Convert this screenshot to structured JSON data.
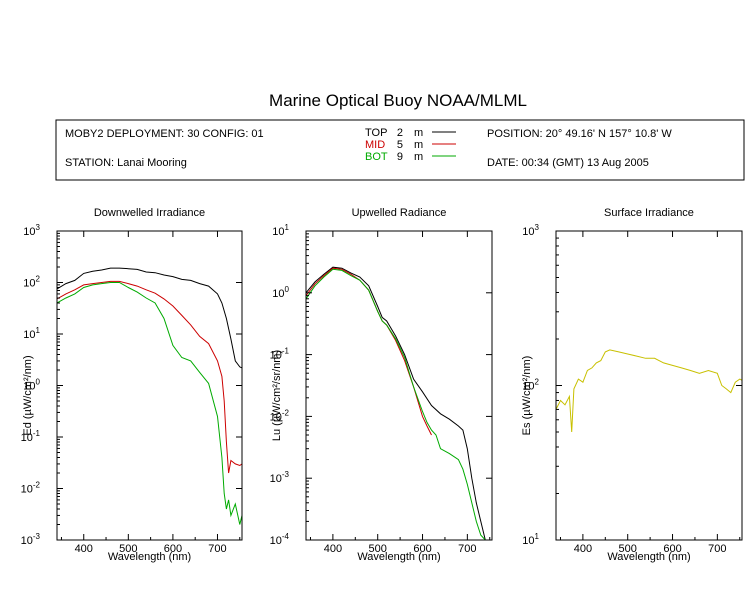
{
  "page": {
    "title": "Marine Optical Buoy NOAA/MLML"
  },
  "info_box": {
    "deployment": "MOBY2 DEPLOYMENT: 30 CONFIG: 01",
    "station": "STATION: Lanai Mooring",
    "position": "POSITION: 20° 49.16' N   157° 10.8' W",
    "date": "DATE: 00:34 (GMT) 13 Aug 2005",
    "depth_legend": [
      {
        "name": "TOP",
        "depth": "2",
        "unit": "m",
        "color": "#000000"
      },
      {
        "name": "MID",
        "depth": "5",
        "unit": "m",
        "color": "#cc0000"
      },
      {
        "name": "BOT",
        "depth": "9",
        "unit": "m",
        "color": "#00aa00"
      }
    ]
  },
  "chart_data": [
    {
      "type": "line",
      "title": "Downwelled Irradiance",
      "xlabel": "Wavelength (nm)",
      "ylabel": "Ed  (µW/cm²/nm)",
      "xlim": [
        340,
        755
      ],
      "ylim": [
        0.001,
        1000
      ],
      "yscale": "log",
      "xticks": [
        400,
        500,
        600,
        700
      ],
      "yticks": [
        {
          "value": 0.001,
          "base": "10",
          "exp": "-3"
        },
        {
          "value": 0.01,
          "base": "10",
          "exp": "-2"
        },
        {
          "value": 0.1,
          "base": "10",
          "exp": "-1"
        },
        {
          "value": 1,
          "base": "10",
          "exp": "0"
        },
        {
          "value": 10,
          "base": "10",
          "exp": "1"
        },
        {
          "value": 100,
          "base": "10",
          "exp": "2"
        },
        {
          "value": 1000,
          "base": "10",
          "exp": "3"
        }
      ],
      "series": [
        {
          "name": "TOP",
          "color": "#000000",
          "x": [
            340,
            360,
            380,
            400,
            420,
            440,
            460,
            480,
            500,
            520,
            540,
            560,
            580,
            600,
            620,
            640,
            660,
            680,
            700,
            710,
            720,
            730,
            740,
            750,
            755
          ],
          "y": [
            75,
            95,
            110,
            150,
            165,
            175,
            190,
            190,
            185,
            180,
            160,
            155,
            140,
            130,
            115,
            110,
            95,
            85,
            60,
            40,
            20,
            8,
            3,
            2.3,
            2.2
          ]
        },
        {
          "name": "MID",
          "color": "#cc0000",
          "x": [
            340,
            360,
            380,
            400,
            420,
            440,
            460,
            480,
            500,
            520,
            540,
            560,
            580,
            600,
            620,
            640,
            660,
            680,
            700,
            710,
            715,
            720,
            725,
            730,
            740,
            750,
            755
          ],
          "y": [
            48,
            60,
            72,
            90,
            95,
            100,
            105,
            105,
            95,
            85,
            72,
            62,
            48,
            35,
            23,
            15,
            9,
            6.5,
            3,
            1.5,
            0.5,
            0.08,
            0.02,
            0.035,
            0.03,
            0.028,
            0.03
          ]
        },
        {
          "name": "BOT",
          "color": "#00aa00",
          "x": [
            340,
            360,
            380,
            400,
            420,
            440,
            460,
            480,
            500,
            520,
            540,
            560,
            580,
            600,
            620,
            640,
            660,
            680,
            700,
            710,
            715,
            720,
            725,
            730,
            740,
            750,
            755
          ],
          "y": [
            40,
            50,
            60,
            80,
            90,
            95,
            100,
            100,
            80,
            65,
            50,
            40,
            20,
            6,
            3.5,
            3,
            1.8,
            1.1,
            0.25,
            0.04,
            0.008,
            0.004,
            0.006,
            0.003,
            0.005,
            0.002,
            0.003
          ]
        }
      ]
    },
    {
      "type": "line",
      "title": "Upwelled Radiance",
      "xlabel": "Wavelength (nm)",
      "ylabel": "Lu  (µW/cm²/sr/nm)",
      "xlim": [
        340,
        755
      ],
      "ylim": [
        0.0001,
        10
      ],
      "yscale": "log",
      "xticks": [
        400,
        500,
        600,
        700
      ],
      "yticks": [
        {
          "value": 0.0001,
          "base": "10",
          "exp": "-4"
        },
        {
          "value": 0.001,
          "base": "10",
          "exp": "-3"
        },
        {
          "value": 0.01,
          "base": "10",
          "exp": "-2"
        },
        {
          "value": 0.1,
          "base": "10",
          "exp": "-1"
        },
        {
          "value": 1,
          "base": "10",
          "exp": "0"
        },
        {
          "value": 10,
          "base": "10",
          "exp": "1"
        }
      ],
      "series": [
        {
          "name": "TOP",
          "color": "#000000",
          "x": [
            340,
            360,
            380,
            400,
            420,
            440,
            460,
            480,
            500,
            510,
            520,
            540,
            560,
            580,
            600,
            620,
            640,
            660,
            680,
            690,
            700,
            710,
            720,
            730,
            740
          ],
          "y": [
            1.0,
            1.5,
            2.0,
            2.6,
            2.5,
            2.1,
            1.8,
            1.3,
            0.6,
            0.4,
            0.35,
            0.2,
            0.1,
            0.04,
            0.025,
            0.015,
            0.011,
            0.009,
            0.007,
            0.006,
            0.003,
            0.001,
            0.0004,
            0.0002,
            0.0001
          ]
        },
        {
          "name": "MID",
          "color": "#cc0000",
          "x": [
            340,
            360,
            380,
            400,
            420,
            440,
            460,
            480,
            500,
            510,
            520,
            540,
            560,
            580,
            600,
            610,
            620
          ],
          "y": [
            0.9,
            1.4,
            1.9,
            2.5,
            2.4,
            2.0,
            1.6,
            1.1,
            0.5,
            0.35,
            0.3,
            0.17,
            0.08,
            0.03,
            0.01,
            0.007,
            0.005
          ]
        },
        {
          "name": "BOT",
          "color": "#00aa00",
          "x": [
            340,
            360,
            380,
            400,
            420,
            440,
            460,
            480,
            500,
            510,
            520,
            540,
            560,
            580,
            600,
            610,
            620,
            630,
            640,
            660,
            680,
            690,
            700,
            710,
            720,
            730,
            740
          ],
          "y": [
            0.8,
            1.3,
            1.8,
            2.4,
            2.3,
            1.9,
            1.6,
            1.1,
            0.5,
            0.35,
            0.3,
            0.18,
            0.09,
            0.03,
            0.012,
            0.008,
            0.006,
            0.005,
            0.003,
            0.0025,
            0.002,
            0.0014,
            0.0008,
            0.0004,
            0.0002,
            0.00012,
            0.0001
          ]
        }
      ]
    },
    {
      "type": "line",
      "title": "Surface Irradiance",
      "xlabel": "Wavelength (nm)",
      "ylabel": "Es  (µW/cm²/nm)",
      "xlim": [
        340,
        755
      ],
      "ylim": [
        10,
        1000
      ],
      "yscale": "log",
      "xticks": [
        400,
        500,
        600,
        700
      ],
      "yticks": [
        {
          "value": 10,
          "base": "10",
          "exp": "1"
        },
        {
          "value": 100,
          "base": "10",
          "exp": "2"
        },
        {
          "value": 1000,
          "base": "10",
          "exp": "3"
        }
      ],
      "series": [
        {
          "name": "Es",
          "color": "#c8c000",
          "x": [
            340,
            350,
            360,
            370,
            375,
            380,
            390,
            400,
            410,
            420,
            430,
            440,
            450,
            460,
            480,
            500,
            520,
            540,
            560,
            580,
            600,
            620,
            640,
            660,
            680,
            700,
            710,
            720,
            730,
            740,
            750,
            755
          ],
          "y": [
            70,
            80,
            75,
            85,
            50,
            95,
            110,
            105,
            125,
            130,
            140,
            145,
            165,
            170,
            165,
            160,
            155,
            150,
            150,
            140,
            135,
            130,
            125,
            120,
            125,
            120,
            100,
            95,
            90,
            105,
            110,
            108
          ]
        }
      ]
    }
  ]
}
